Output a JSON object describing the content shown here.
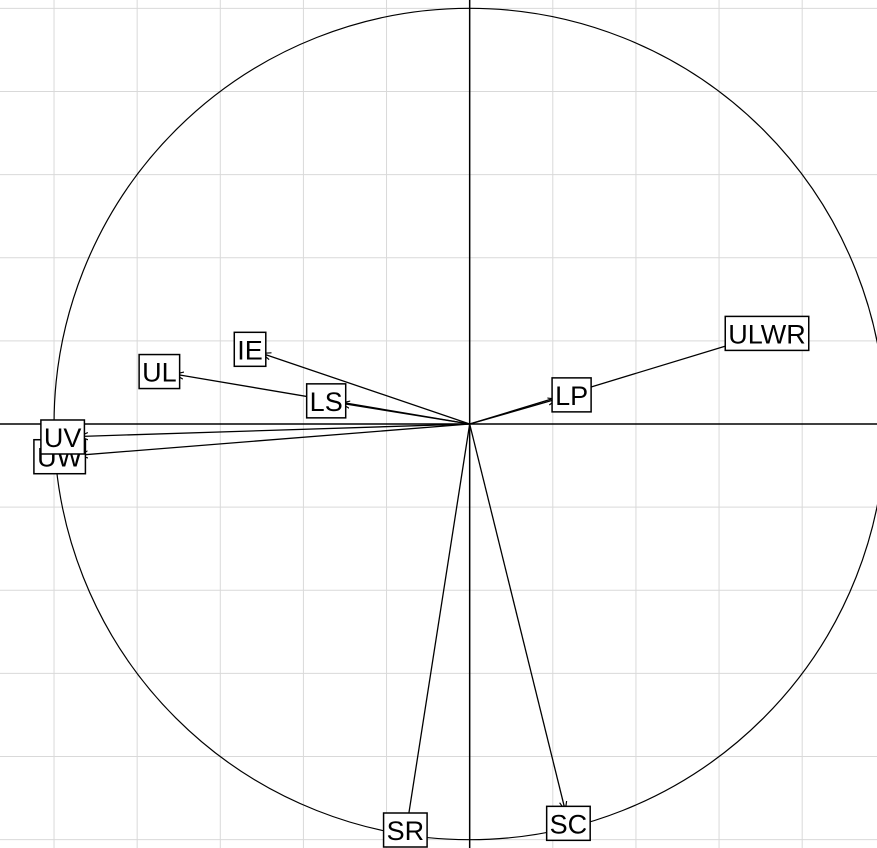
{
  "chart_data": {
    "type": "correlation-circle",
    "xlim": [
      -1.13,
      0.98
    ],
    "ylim": [
      -1.02,
      1.02
    ],
    "xticks": [
      -1.0,
      -0.8,
      -0.6,
      -0.4,
      -0.2,
      0,
      0.2,
      0.4,
      0.6,
      0.8
    ],
    "yticks": [
      -1.0,
      -0.8,
      -0.6,
      -0.4,
      -0.2,
      0,
      0.2,
      0.4,
      0.6,
      0.8,
      1.0
    ],
    "grid": true,
    "radius": 1,
    "variables": [
      {
        "name": "ULWR",
        "x": 0.64,
        "y": 0.195
      },
      {
        "name": "LP",
        "x": 0.21,
        "y": 0.06
      },
      {
        "name": "IE",
        "x": -0.5,
        "y": 0.17
      },
      {
        "name": "UL",
        "x": -0.71,
        "y": 0.12
      },
      {
        "name": "LS",
        "x": -0.31,
        "y": 0.05
      },
      {
        "name": "UW",
        "x": -0.94,
        "y": -0.075
      },
      {
        "name": "UV",
        "x": -0.94,
        "y": -0.03
      },
      {
        "name": "SR",
        "x": -0.15,
        "y": -0.96
      },
      {
        "name": "SC",
        "x": 0.23,
        "y": -0.93
      }
    ]
  }
}
